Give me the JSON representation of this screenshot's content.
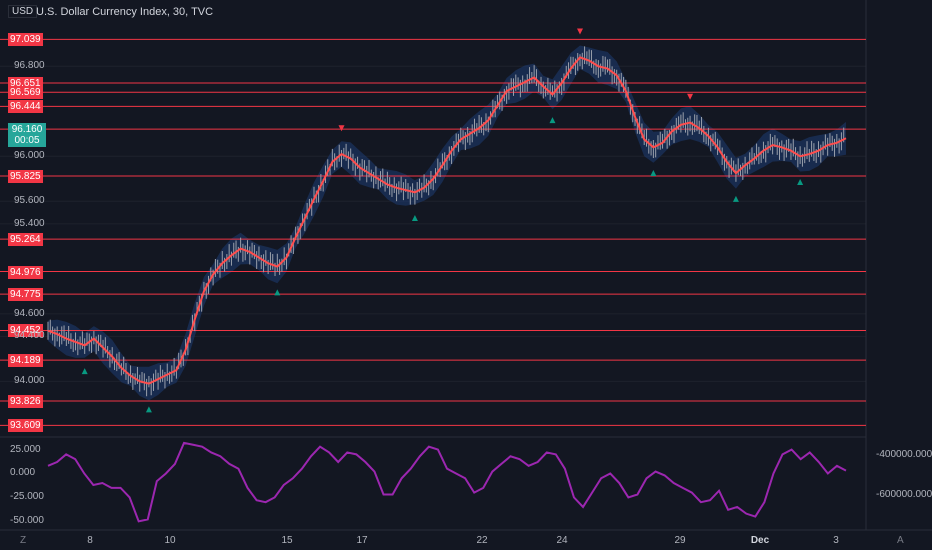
{
  "header": {
    "currency": "USD",
    "title": "U.S. Dollar Currency Index, 30, TVC"
  },
  "current": {
    "price": "96.160",
    "countdown": "00:05"
  },
  "y_axis_labels": [
    "96.800",
    "96.000",
    "95.600",
    "95.400",
    "94.600",
    "94.400",
    "94.000"
  ],
  "level_tags": [
    "97.039",
    "96.651",
    "96.569",
    "96.444",
    "96.241",
    "95.825",
    "95.264",
    "94.976",
    "94.775",
    "94.452",
    "94.189",
    "93.826",
    "93.609"
  ],
  "osc_axis_labels": [
    "25.000",
    "0.000",
    "-25.000",
    "-50.000"
  ],
  "osc_right_labels": [
    "-400000.000",
    "-600000.000"
  ],
  "x_axis_labels": [
    "8",
    "10",
    "15",
    "17",
    "22",
    "24",
    "29",
    "Dec",
    "3"
  ],
  "corner": {
    "left": "Z",
    "right": "A"
  },
  "colors": {
    "background": "#131722",
    "level_line": "#f23645",
    "price_line": "#ff4d4d",
    "band": "#1e3c72",
    "up_marker": "#089981",
    "down_marker": "#f23645",
    "oscillator": "#9c27b0",
    "current_tag": "#26a69a"
  },
  "chart_data": [
    {
      "type": "line",
      "title": "U.S. Dollar Currency Index, 30, TVC",
      "ylim": [
        93.55,
        97.3
      ],
      "y_ticks": [
        96.8,
        96.0,
        95.6,
        95.4,
        94.6,
        94.4,
        94.0
      ],
      "x_ticks": [
        "8",
        "10",
        "15",
        "17",
        "22",
        "24",
        "29",
        "Dec",
        "3"
      ],
      "horizontal_levels": [
        97.039,
        96.651,
        96.569,
        96.444,
        96.241,
        95.825,
        95.264,
        94.976,
        94.775,
        94.452,
        94.189,
        93.826,
        93.609
      ],
      "last_price": 96.16,
      "series": [
        {
          "values": [
            94.45,
            94.42,
            94.38,
            94.35,
            94.32,
            94.38,
            94.3,
            94.22,
            94.12,
            94.05,
            94.0,
            93.98,
            94.02,
            94.06,
            94.1,
            94.28,
            94.55,
            94.8,
            94.95,
            95.05,
            95.12,
            95.18,
            95.15,
            95.1,
            95.05,
            95.02,
            95.1,
            95.28,
            95.45,
            95.62,
            95.78,
            95.95,
            96.02,
            95.98,
            95.9,
            95.85,
            95.8,
            95.75,
            95.72,
            95.7,
            95.68,
            95.72,
            95.8,
            95.92,
            96.05,
            96.15,
            96.2,
            96.25,
            96.32,
            96.45,
            96.58,
            96.62,
            96.66,
            96.7,
            96.62,
            96.55,
            96.65,
            96.78,
            96.88,
            96.85,
            96.8,
            96.78,
            96.72,
            96.58,
            96.35,
            96.15,
            96.08,
            96.12,
            96.22,
            96.28,
            96.3,
            96.25,
            96.18,
            96.08,
            95.95,
            95.85,
            95.92,
            95.98,
            96.05,
            96.1,
            96.08,
            96.05,
            96.0,
            96.02,
            96.05,
            96.1,
            96.12,
            96.16
          ]
        }
      ]
    },
    {
      "type": "line",
      "ylim": [
        -57,
        35
      ],
      "y_ticks": [
        25,
        0,
        -25,
        -50
      ],
      "series": [
        {
          "values": [
            8,
            12,
            20,
            15,
            0,
            -12,
            -10,
            -15,
            -15,
            -25,
            -50,
            -48,
            -8,
            0,
            10,
            32,
            30,
            28,
            22,
            18,
            10,
            5,
            -15,
            -28,
            -30,
            -25,
            -12,
            -5,
            5,
            18,
            28,
            22,
            12,
            22,
            20,
            12,
            2,
            -22,
            -22,
            -5,
            5,
            18,
            28,
            25,
            5,
            0,
            -5,
            -20,
            -15,
            2,
            10,
            18,
            15,
            8,
            12,
            22,
            20,
            5,
            -25,
            -35,
            -20,
            -5,
            0,
            -10,
            -25,
            -22,
            -5,
            2,
            -2,
            -10,
            -15,
            -20,
            -30,
            -28,
            -18,
            -38,
            -35,
            -42,
            -45,
            -30,
            0,
            20,
            25,
            15,
            22,
            12,
            0,
            8,
            3
          ]
        }
      ]
    }
  ]
}
